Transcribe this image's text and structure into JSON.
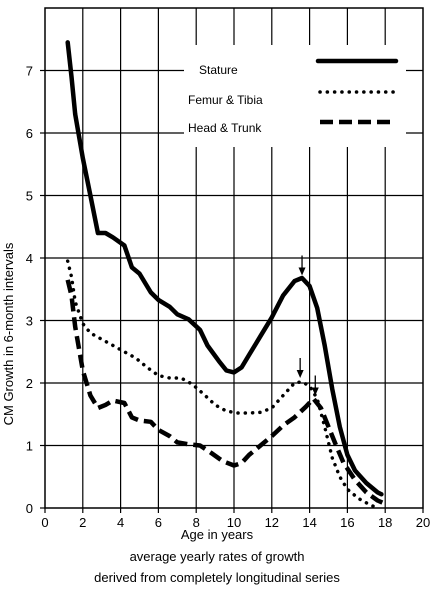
{
  "chart_data": {
    "type": "line",
    "xlabel": "Age in years",
    "ylabel": "CM Growth in 6-month intervals",
    "caption": [
      "average yearly rates of growth",
      "derived from completely longitudinal series"
    ],
    "xlim": [
      0,
      20
    ],
    "ylim": [
      0,
      8
    ],
    "x_ticks": [
      0,
      2,
      4,
      6,
      8,
      10,
      12,
      14,
      16,
      18,
      20
    ],
    "y_ticks": [
      0,
      1,
      2,
      3,
      4,
      5,
      6,
      7
    ],
    "grid": true,
    "legend_position": "top-right",
    "series": [
      {
        "name": "Stature",
        "style": "solid",
        "points": [
          [
            1.2,
            7.45
          ],
          [
            1.4,
            6.9
          ],
          [
            1.6,
            6.3
          ],
          [
            2.0,
            5.6
          ],
          [
            2.4,
            5.0
          ],
          [
            2.8,
            4.4
          ],
          [
            3.2,
            4.4
          ],
          [
            3.6,
            4.33
          ],
          [
            4.2,
            4.2
          ],
          [
            4.6,
            3.85
          ],
          [
            5.0,
            3.75
          ],
          [
            5.6,
            3.45
          ],
          [
            6.0,
            3.33
          ],
          [
            6.6,
            3.22
          ],
          [
            7.0,
            3.1
          ],
          [
            7.6,
            3.02
          ],
          [
            8.2,
            2.85
          ],
          [
            8.6,
            2.6
          ],
          [
            9.2,
            2.35
          ],
          [
            9.6,
            2.2
          ],
          [
            10.0,
            2.17
          ],
          [
            10.4,
            2.25
          ],
          [
            10.8,
            2.45
          ],
          [
            11.4,
            2.75
          ],
          [
            12.0,
            3.05
          ],
          [
            12.6,
            3.4
          ],
          [
            13.2,
            3.63
          ],
          [
            13.6,
            3.68
          ],
          [
            14.0,
            3.55
          ],
          [
            14.4,
            3.2
          ],
          [
            14.8,
            2.6
          ],
          [
            15.2,
            1.9
          ],
          [
            15.6,
            1.3
          ],
          [
            16.0,
            0.85
          ],
          [
            16.4,
            0.6
          ],
          [
            17.0,
            0.4
          ],
          [
            17.6,
            0.25
          ],
          [
            17.8,
            0.22
          ]
        ]
      },
      {
        "name": "Femur & Tibia",
        "style": "dotted",
        "points": [
          [
            1.2,
            3.95
          ],
          [
            1.4,
            3.7
          ],
          [
            1.6,
            3.3
          ],
          [
            2.0,
            2.95
          ],
          [
            2.4,
            2.8
          ],
          [
            3.0,
            2.7
          ],
          [
            3.6,
            2.6
          ],
          [
            4.2,
            2.5
          ],
          [
            4.8,
            2.4
          ],
          [
            5.4,
            2.25
          ],
          [
            6.0,
            2.12
          ],
          [
            6.6,
            2.08
          ],
          [
            7.2,
            2.08
          ],
          [
            7.8,
            1.98
          ],
          [
            8.4,
            1.82
          ],
          [
            9.0,
            1.65
          ],
          [
            9.6,
            1.55
          ],
          [
            10.2,
            1.52
          ],
          [
            10.8,
            1.52
          ],
          [
            11.4,
            1.53
          ],
          [
            12.0,
            1.6
          ],
          [
            12.6,
            1.8
          ],
          [
            13.2,
            2.0
          ],
          [
            13.6,
            2.02
          ],
          [
            14.0,
            1.95
          ],
          [
            14.4,
            1.75
          ],
          [
            14.8,
            1.3
          ],
          [
            15.2,
            0.8
          ],
          [
            15.6,
            0.5
          ],
          [
            16.0,
            0.3
          ],
          [
            16.6,
            0.15
          ],
          [
            17.2,
            0.05
          ],
          [
            17.6,
            0.0
          ]
        ]
      },
      {
        "name": "Head & Trunk",
        "style": "dashed",
        "points": [
          [
            1.2,
            3.65
          ],
          [
            1.4,
            3.4
          ],
          [
            1.6,
            2.9
          ],
          [
            2.0,
            2.2
          ],
          [
            2.4,
            1.8
          ],
          [
            2.8,
            1.6
          ],
          [
            3.2,
            1.65
          ],
          [
            3.6,
            1.72
          ],
          [
            4.2,
            1.68
          ],
          [
            4.6,
            1.45
          ],
          [
            5.0,
            1.4
          ],
          [
            5.6,
            1.38
          ],
          [
            6.0,
            1.25
          ],
          [
            6.6,
            1.15
          ],
          [
            7.0,
            1.05
          ],
          [
            7.6,
            1.02
          ],
          [
            8.2,
            1.0
          ],
          [
            8.8,
            0.88
          ],
          [
            9.4,
            0.75
          ],
          [
            10.0,
            0.68
          ],
          [
            10.4,
            0.72
          ],
          [
            10.8,
            0.85
          ],
          [
            11.4,
            1.0
          ],
          [
            12.0,
            1.15
          ],
          [
            12.6,
            1.32
          ],
          [
            13.2,
            1.45
          ],
          [
            13.8,
            1.62
          ],
          [
            14.2,
            1.75
          ],
          [
            14.6,
            1.6
          ],
          [
            15.0,
            1.3
          ],
          [
            15.4,
            1.0
          ],
          [
            15.8,
            0.72
          ],
          [
            16.4,
            0.45
          ],
          [
            17.0,
            0.25
          ],
          [
            17.6,
            0.12
          ],
          [
            17.9,
            0.08
          ]
        ]
      }
    ],
    "annotations": [
      {
        "type": "arrow",
        "x": 13.6,
        "y": 3.72
      },
      {
        "type": "arrow",
        "x": 13.5,
        "y": 2.08
      },
      {
        "type": "arrow",
        "x": 14.3,
        "y": 1.8
      }
    ]
  }
}
